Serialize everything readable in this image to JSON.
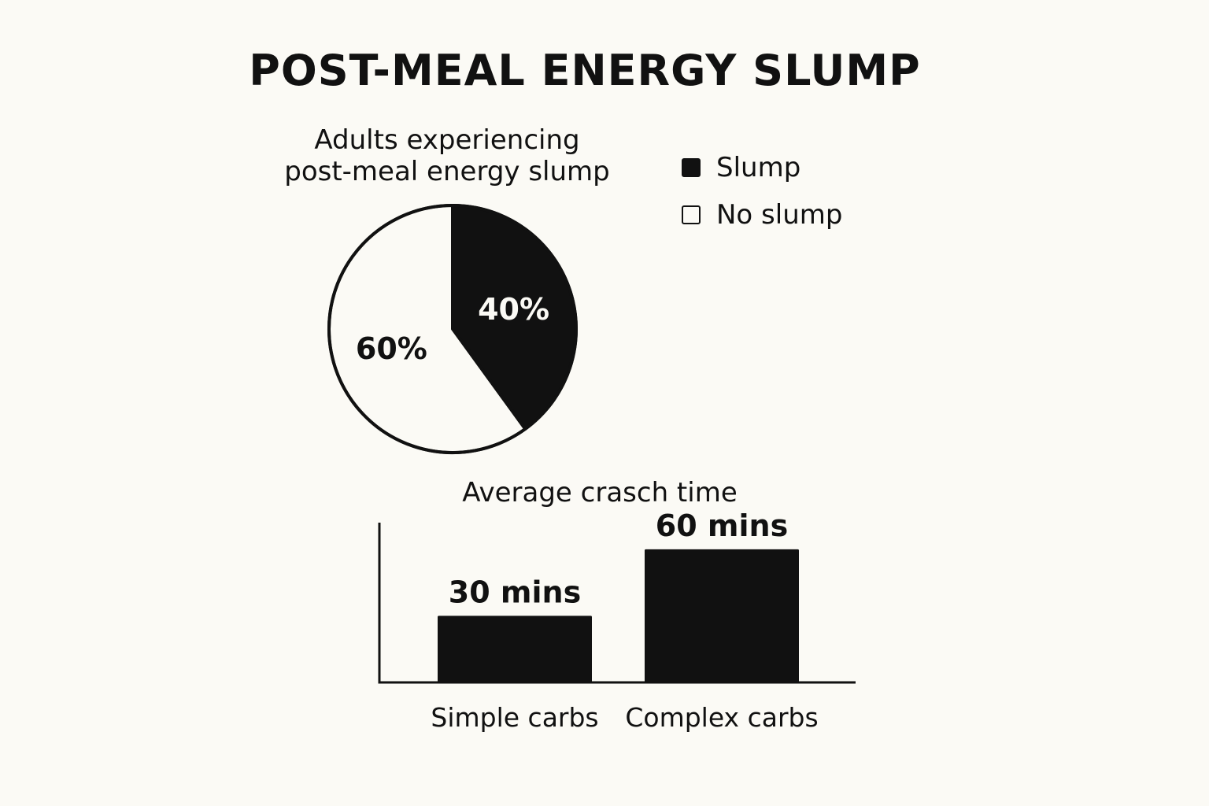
{
  "colors": {
    "background": "#fbfaf5",
    "ink": "#111111",
    "light": "#fbfaf5"
  },
  "chart_data": [
    {
      "type": "pie",
      "title": "POST-MEAL ENERGY SLUMP",
      "subtitle_lines": [
        "Adults experiencing",
        "post-meal energy slump"
      ],
      "legend": [
        {
          "label": "Slump",
          "color": "#111111"
        },
        {
          "label": "No slump",
          "color": "#fbfaf5"
        }
      ],
      "slices": [
        {
          "name": "Slump",
          "value": 40,
          "label": "40%",
          "color": "#111111"
        },
        {
          "name": "No slump",
          "value": 60,
          "label": "60%",
          "color": "#fbfaf5"
        }
      ]
    },
    {
      "type": "bar",
      "title": "Average crasch time",
      "categories": [
        "Simple carbs",
        "Complex carbs"
      ],
      "values": [
        30,
        60
      ],
      "data_labels": [
        "30 mins",
        "60 mins"
      ],
      "unit": "mins",
      "ylim": [
        0,
        72
      ],
      "grid": false
    }
  ]
}
